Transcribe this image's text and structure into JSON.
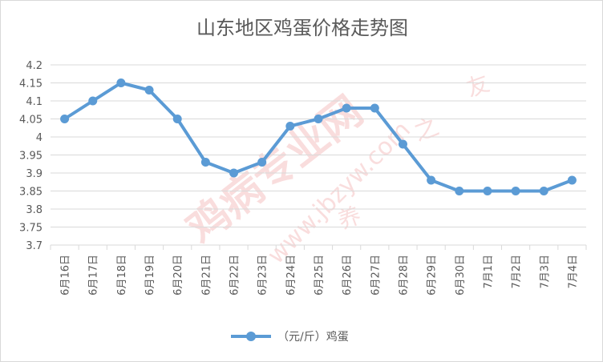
{
  "chart_data": {
    "type": "line",
    "title": "山东地区鸡蛋价格走势图",
    "categories": [
      "6月16日",
      "6月17日",
      "6月18日",
      "6月19日",
      "6月20日",
      "6月21日",
      "6月22日",
      "6月23日",
      "6月24日",
      "6月25日",
      "6月26日",
      "6月27日",
      "6月28日",
      "6月29日",
      "6月30日",
      "7月1日",
      "7月2日",
      "7月3日",
      "7月4日"
    ],
    "series": [
      {
        "name": "（元/斤）鸡蛋",
        "values": [
          4.05,
          4.1,
          4.15,
          4.13,
          4.05,
          3.93,
          3.9,
          3.93,
          4.03,
          4.05,
          4.08,
          4.08,
          3.98,
          3.88,
          3.85,
          3.85,
          3.85,
          3.85,
          3.88
        ]
      }
    ],
    "y_ticks": [
      "3.7",
      "3.75",
      "3.8",
      "3.85",
      "3.9",
      "3.95",
      "4",
      "4.05",
      "4.1",
      "4.15",
      "4.2"
    ],
    "ylim": [
      3.7,
      4.2
    ],
    "grid": true,
    "legend_position": "bottom",
    "series_color": "#5b9bd5",
    "watermark_text": [
      "鸡病专业网",
      "www.jbzyw.com",
      "之",
      "养",
      "友"
    ]
  }
}
